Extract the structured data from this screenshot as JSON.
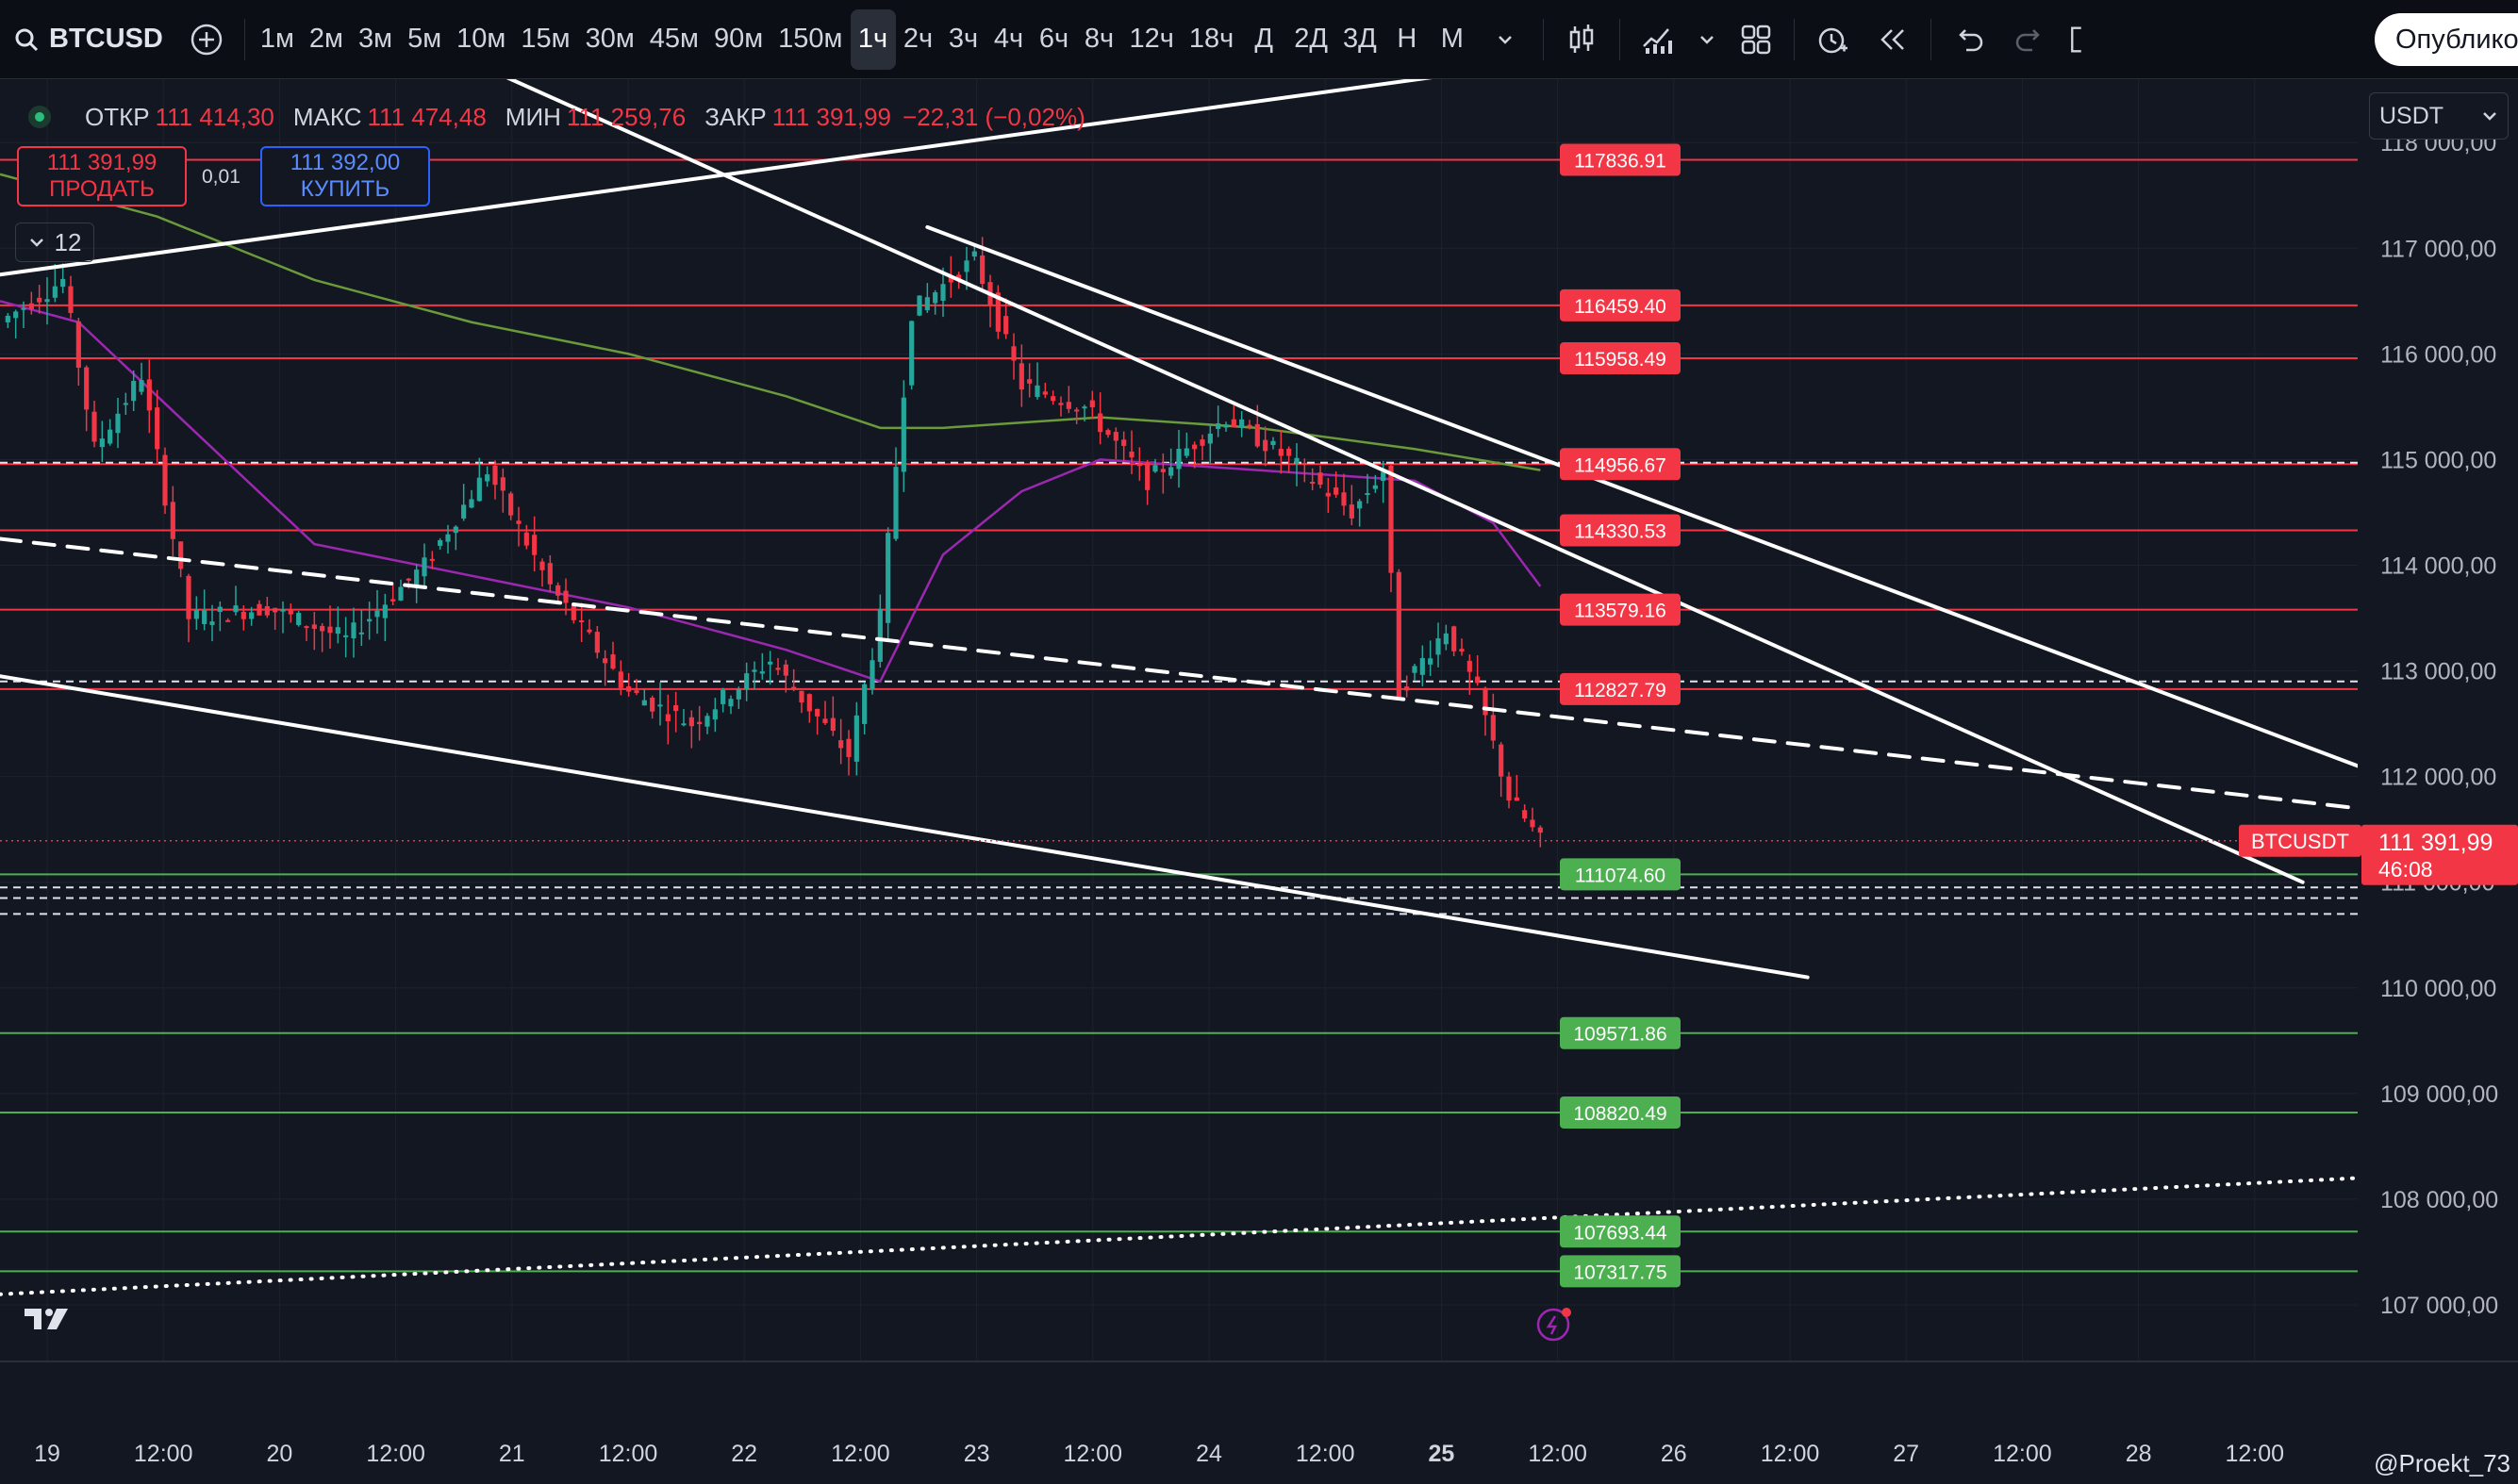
{
  "toolbar": {
    "symbol": "BTCUSD",
    "intervals": [
      "1м",
      "2м",
      "3м",
      "5м",
      "10м",
      "15м",
      "30м",
      "45м",
      "90м",
      "150м",
      "1ч",
      "2ч",
      "3ч",
      "4ч",
      "6ч",
      "8ч",
      "12ч",
      "18ч",
      "Д",
      "2Д",
      "3Д",
      "Н",
      "М"
    ],
    "active_interval": "1ч",
    "publish_label": "Опублико"
  },
  "legend": {
    "open_label": "ОТКР",
    "open": "111 414,30",
    "high_label": "МАКС",
    "high": "111 474,48",
    "low_label": "МИН",
    "low": "111 259,76",
    "close_label": "ЗАКР",
    "close": "111 391,99",
    "change": "−22,31 (−0,02%)",
    "sell_price": "111 391,99",
    "sell_label": "ПРОДАТЬ",
    "buy_price": "111 392,00",
    "buy_label": "КУПИТЬ",
    "spread": "0,01",
    "indicators_count": "12"
  },
  "currency": "USDT",
  "watermark": "@Proekt_73",
  "colors": {
    "background": "#131722",
    "up": "#26a69a",
    "down": "#f23645",
    "resistance": "#f23645",
    "support": "#4caf50",
    "ma_fast": "#9c27b0",
    "ma_slow": "#6a9a3a"
  },
  "chart_data": {
    "type": "candlestick",
    "symbol": "BTCUSDT",
    "x_ticks": [
      "19",
      "12:00",
      "20",
      "12:00",
      "21",
      "12:00",
      "22",
      "12:00",
      "23",
      "12:00",
      "24",
      "12:00",
      "25",
      "12:00",
      "26",
      "12:00",
      "27",
      "12:00",
      "28",
      "12:00"
    ],
    "bold_x_tick": "25",
    "y_ticks": [
      "118 000,00",
      "117 000,00",
      "116 000,00",
      "115 000,00",
      "114 000,00",
      "113 000,00",
      "112 000,00",
      "111 000,00",
      "110 000,00",
      "109 000,00",
      "108 000,00",
      "107 000,00"
    ],
    "ylim": [
      106500,
      118600
    ],
    "last_price": {
      "label": "BTCUSDT",
      "value": "111 391,99",
      "countdown": "46:08",
      "y": 111391.99
    },
    "levels": [
      {
        "label": "117836.91",
        "y": 117836.91,
        "kind": "resistance"
      },
      {
        "label": "116459.40",
        "y": 116459.4,
        "kind": "resistance"
      },
      {
        "label": "115958.49",
        "y": 115958.49,
        "kind": "resistance"
      },
      {
        "label": "114956.67",
        "y": 114956.67,
        "kind": "resistance"
      },
      {
        "label": "114330.53",
        "y": 114330.53,
        "kind": "resistance"
      },
      {
        "label": "113579.16",
        "y": 113579.16,
        "kind": "resistance"
      },
      {
        "label": "112827.79",
        "y": 112827.79,
        "kind": "resistance"
      },
      {
        "label": "111074.60",
        "y": 111074.6,
        "kind": "support"
      },
      {
        "label": "109571.86",
        "y": 109571.86,
        "kind": "support"
      },
      {
        "label": "108820.49",
        "y": 108820.49,
        "kind": "support"
      },
      {
        "label": "107693.44",
        "y": 107693.44,
        "kind": "support"
      },
      {
        "label": "107317.75",
        "y": 107317.75,
        "kind": "support"
      }
    ],
    "dashed_levels": [
      114970,
      112900,
      110950,
      110850,
      110700
    ],
    "anchors": [
      {
        "t": 0,
        "p": 116300
      },
      {
        "t": 8,
        "p": 116700
      },
      {
        "t": 12,
        "p": 115100
      },
      {
        "t": 18,
        "p": 115800
      },
      {
        "t": 24,
        "p": 113500
      },
      {
        "t": 34,
        "p": 113600
      },
      {
        "t": 44,
        "p": 113300
      },
      {
        "t": 54,
        "p": 114000
      },
      {
        "t": 62,
        "p": 114900
      },
      {
        "t": 70,
        "p": 113800
      },
      {
        "t": 80,
        "p": 112800
      },
      {
        "t": 88,
        "p": 112500
      },
      {
        "t": 98,
        "p": 113100
      },
      {
        "t": 108,
        "p": 112200
      },
      {
        "t": 112,
        "p": 113500
      },
      {
        "t": 116,
        "p": 116400
      },
      {
        "t": 124,
        "p": 116900
      },
      {
        "t": 130,
        "p": 115700
      },
      {
        "t": 138,
        "p": 115500
      },
      {
        "t": 146,
        "p": 114800
      },
      {
        "t": 156,
        "p": 115400
      },
      {
        "t": 164,
        "p": 115000
      },
      {
        "t": 172,
        "p": 114500
      },
      {
        "t": 176,
        "p": 114900
      },
      {
        "t": 178,
        "p": 112800
      },
      {
        "t": 184,
        "p": 113400
      },
      {
        "t": 188,
        "p": 112800
      },
      {
        "t": 192,
        "p": 111800
      },
      {
        "t": 196,
        "p": 111390
      }
    ],
    "ma_fast": [
      [
        0,
        116500
      ],
      [
        10,
        116300
      ],
      [
        20,
        115600
      ],
      [
        40,
        114200
      ],
      [
        60,
        113900
      ],
      [
        80,
        113600
      ],
      [
        100,
        113200
      ],
      [
        112,
        112900
      ],
      [
        120,
        114100
      ],
      [
        130,
        114700
      ],
      [
        140,
        115000
      ],
      [
        160,
        114900
      ],
      [
        180,
        114800
      ],
      [
        190,
        114400
      ],
      [
        196,
        113800
      ]
    ],
    "ma_slow": [
      [
        0,
        117700
      ],
      [
        20,
        117300
      ],
      [
        40,
        116700
      ],
      [
        60,
        116300
      ],
      [
        80,
        116000
      ],
      [
        100,
        115600
      ],
      [
        112,
        115300
      ],
      [
        120,
        115300
      ],
      [
        140,
        115400
      ],
      [
        160,
        115300
      ],
      [
        180,
        115100
      ],
      [
        196,
        114900
      ]
    ],
    "trend_lines": [
      {
        "style": "solid",
        "points": [
          [
            0,
            116750
          ],
          [
            200,
            118800
          ]
        ]
      },
      {
        "style": "solid",
        "points": [
          [
            62,
            118700
          ],
          [
            293,
            111000
          ]
        ]
      },
      {
        "style": "solid",
        "points": [
          [
            118,
            117200
          ],
          [
            300,
            112100
          ]
        ]
      },
      {
        "style": "solid",
        "points": [
          [
            0,
            112950
          ],
          [
            230,
            110100
          ]
        ]
      },
      {
        "style": "dashed",
        "points": [
          [
            0,
            114250
          ],
          [
            300,
            111700
          ]
        ]
      },
      {
        "style": "dotted",
        "points": [
          [
            0,
            107100
          ],
          [
            300,
            108200
          ]
        ]
      }
    ]
  }
}
